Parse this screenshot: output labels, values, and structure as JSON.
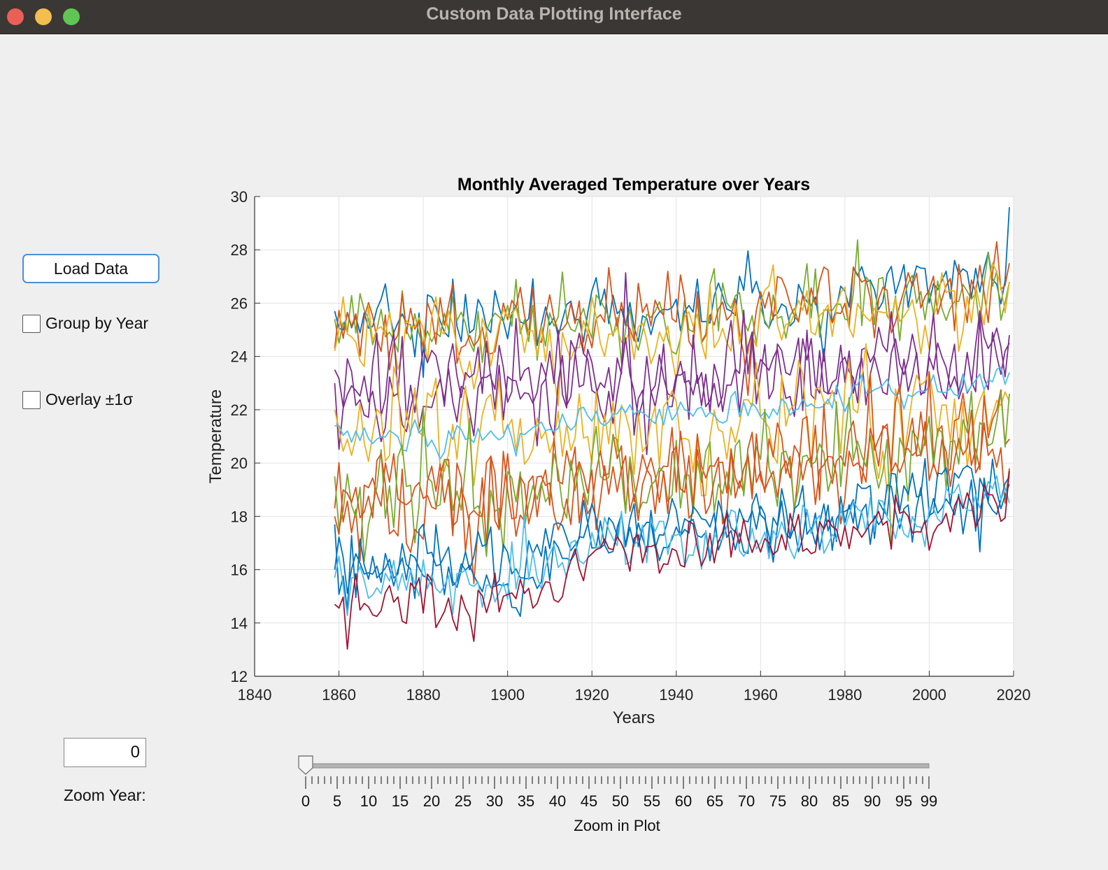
{
  "window": {
    "title": "Custom Data Plotting Interface"
  },
  "controls": {
    "load_button": "Load Data",
    "group_by_year": {
      "label": "Group by Year",
      "checked": false
    },
    "overlay_sigma": {
      "label": "Overlay ±1σ",
      "checked": false
    },
    "zoom_year_value": "0",
    "zoom_year_label": "Zoom Year:"
  },
  "slider": {
    "label": "Zoom in Plot",
    "min": 0,
    "max": 99,
    "value": 0,
    "tick_labels": [
      "0",
      "5",
      "10",
      "15",
      "20",
      "25",
      "30",
      "35",
      "40",
      "45",
      "50",
      "55",
      "60",
      "65",
      "70",
      "75",
      "80",
      "85",
      "90",
      "95",
      "99"
    ]
  },
  "colors": [
    "#0072bd",
    "#d95319",
    "#edb120",
    "#7e2f8e",
    "#77ac30",
    "#4dbeee",
    "#a2142f"
  ],
  "chart_data": {
    "type": "line",
    "title": "Monthly Averaged Temperature over Years",
    "xlabel": "Years",
    "ylabel": "Temperature",
    "xlim": [
      1840,
      2020
    ],
    "ylim": [
      12,
      30
    ],
    "xticks": [
      1840,
      1860,
      1880,
      1900,
      1920,
      1940,
      1960,
      1980,
      2000,
      2020
    ],
    "yticks": [
      12,
      14,
      16,
      18,
      20,
      22,
      24,
      26,
      28,
      30
    ],
    "grid": true,
    "x_start": 1859,
    "x_end": 2019,
    "series": [
      {
        "color_index": 0,
        "start": 25.7,
        "end": 29.6,
        "mean_keypoints": [
          [
            1859,
            25.3
          ],
          [
            1920,
            25.6
          ],
          [
            1960,
            25.7
          ],
          [
            2019,
            27.2
          ]
        ],
        "amplitude": 0.8,
        "seed": 11
      },
      {
        "color_index": 4,
        "start": 25.4,
        "end": 26.8,
        "mean_keypoints": [
          [
            1859,
            25.0
          ],
          [
            1920,
            25.4
          ],
          [
            1960,
            25.5
          ],
          [
            2019,
            26.5
          ]
        ],
        "amplitude": 0.9,
        "seed": 12
      },
      {
        "color_index": 1,
        "start": 24.3,
        "end": 27.5,
        "mean_keypoints": [
          [
            1859,
            25.0
          ],
          [
            1920,
            25.5
          ],
          [
            1960,
            25.6
          ],
          [
            2019,
            26.8
          ]
        ],
        "amplitude": 0.9,
        "seed": 13
      },
      {
        "color_index": 2,
        "start": 24.2,
        "end": 26.8,
        "mean_keypoints": [
          [
            1859,
            24.5
          ],
          [
            1920,
            24.8
          ],
          [
            1960,
            25.0
          ],
          [
            2019,
            26.0
          ]
        ],
        "amplitude": 0.9,
        "seed": 14
      },
      {
        "color_index": 3,
        "start": 23.5,
        "end": 24.8,
        "mean_keypoints": [
          [
            1859,
            22.8
          ],
          [
            1920,
            23.2
          ],
          [
            1960,
            23.3
          ],
          [
            2019,
            24.3
          ]
        ],
        "amplitude": 1.2,
        "seed": 15
      },
      {
        "color_index": 3,
        "start": 23.0,
        "end": 24.5,
        "mean_keypoints": [
          [
            1859,
            22.2
          ],
          [
            1920,
            22.8
          ],
          [
            1960,
            23.0
          ],
          [
            2019,
            24.0
          ]
        ],
        "amplitude": 1.1,
        "seed": 16
      },
      {
        "color_index": 2,
        "start": 22.0,
        "end": 22.3,
        "mean_keypoints": [
          [
            1859,
            21.5
          ],
          [
            1920,
            21.5
          ],
          [
            1960,
            21.5
          ],
          [
            2019,
            22.3
          ]
        ],
        "amplitude": 1.3,
        "seed": 17
      },
      {
        "color_index": 5,
        "start": 21.4,
        "end": 23.4,
        "mean_keypoints": [
          [
            1859,
            21.0
          ],
          [
            1900,
            20.9
          ],
          [
            1920,
            21.7
          ],
          [
            1960,
            21.9
          ],
          [
            2019,
            23.3
          ]
        ],
        "amplitude": 0.35,
        "seed": 18
      },
      {
        "color_index": 1,
        "start": 18.3,
        "end": 20.9,
        "mean_keypoints": [
          [
            1859,
            18.8
          ],
          [
            1920,
            19.5
          ],
          [
            1960,
            19.9
          ],
          [
            2019,
            21.8
          ]
        ],
        "amplitude": 1.3,
        "seed": 19
      },
      {
        "color_index": 4,
        "start": 19.5,
        "end": 22.6,
        "mean_keypoints": [
          [
            1859,
            18.6
          ],
          [
            1920,
            19.2
          ],
          [
            1960,
            19.8
          ],
          [
            2019,
            21.3
          ]
        ],
        "amplitude": 1.2,
        "seed": 20
      },
      {
        "color_index": 1,
        "start": 18.0,
        "end": 19.8,
        "mean_keypoints": [
          [
            1859,
            18.6
          ],
          [
            1920,
            18.9
          ],
          [
            1960,
            19.4
          ],
          [
            2019,
            20.4
          ]
        ],
        "amplitude": 1.1,
        "seed": 21
      },
      {
        "color_index": 0,
        "start": 17.7,
        "end": 19.5,
        "mean_keypoints": [
          [
            1859,
            16.2
          ],
          [
            1900,
            16.4
          ],
          [
            1920,
            17.4
          ],
          [
            1960,
            17.7
          ],
          [
            2019,
            19.4
          ]
        ],
        "amplitude": 0.8,
        "seed": 22
      },
      {
        "color_index": 0,
        "start": 16.0,
        "end": 19.2,
        "mean_keypoints": [
          [
            1859,
            16.0
          ],
          [
            1900,
            15.6
          ],
          [
            1920,
            17.2
          ],
          [
            1960,
            17.5
          ],
          [
            2019,
            18.9
          ]
        ],
        "amplitude": 0.8,
        "seed": 23
      },
      {
        "color_index": 5,
        "start": 15.7,
        "end": 18.5,
        "mean_keypoints": [
          [
            1859,
            15.6
          ],
          [
            1900,
            15.5
          ],
          [
            1920,
            16.8
          ],
          [
            1960,
            17.2
          ],
          [
            2019,
            18.5
          ]
        ],
        "amplitude": 0.7,
        "seed": 24
      },
      {
        "color_index": 6,
        "start": 14.7,
        "end": 19.7,
        "mean_keypoints": [
          [
            1859,
            14.9
          ],
          [
            1900,
            14.5
          ],
          [
            1915,
            15.6
          ],
          [
            1920,
            16.8
          ],
          [
            1960,
            16.9
          ],
          [
            2019,
            18.4
          ]
        ],
        "amplitude": 0.6,
        "seed": 25
      }
    ]
  }
}
